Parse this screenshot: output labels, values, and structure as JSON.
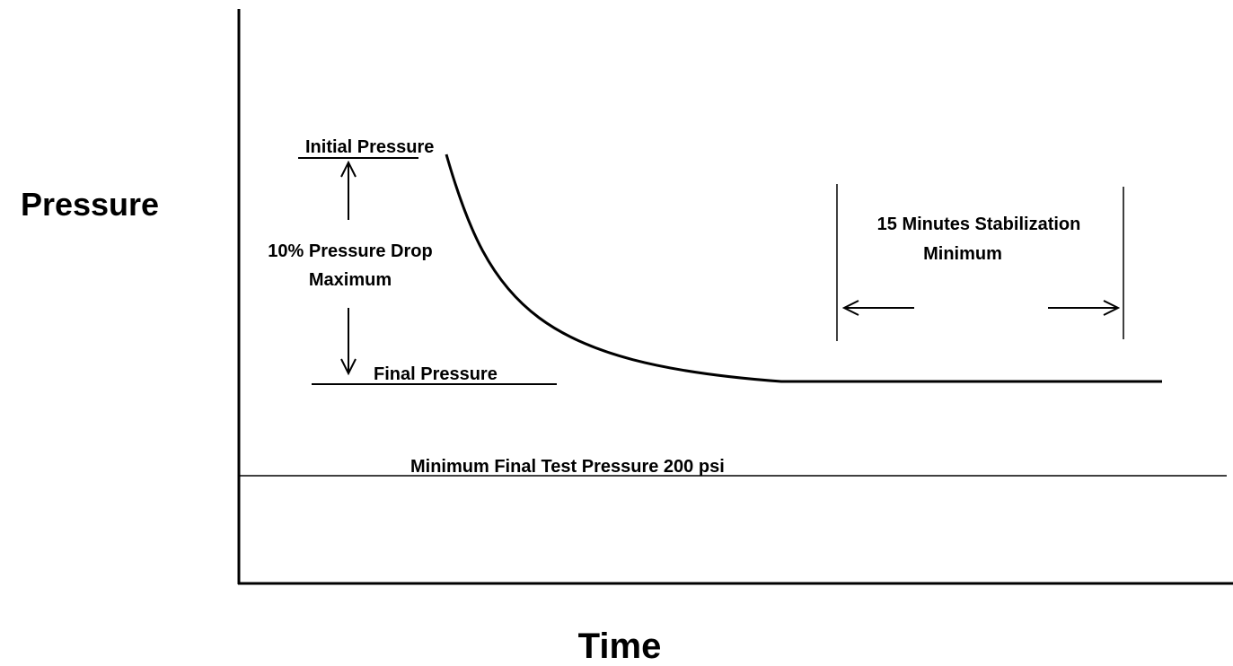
{
  "axis_labels": {
    "y": "Pressure",
    "x": "Time"
  },
  "annotations": {
    "initial_pressure": "Initial Pressure",
    "pressure_drop": [
      "10% Pressure Drop",
      "Maximum"
    ],
    "final_pressure": "Final Pressure",
    "minimum_final": "Minimum Final Test Pressure 200 psi",
    "stabilization": [
      "15 Minutes Stabilization",
      "Minimum"
    ]
  }
}
